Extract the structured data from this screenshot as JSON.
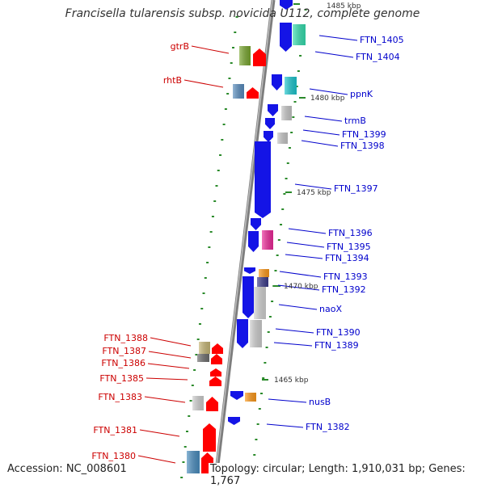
{
  "title": "Francisella tularensis subsp. novicida U112, complete genome",
  "footer": {
    "accession": "Accession: NC_008601",
    "topology": "Topology: circular; Length: 1,910,031 bp; Genes: 1,767"
  },
  "colors": {
    "forward_label": "#0000cc",
    "reverse_label": "#cc0000",
    "forward_arrow": "#1414e6",
    "reverse_arrow": "#ff0000",
    "backbone": "#8c8c8c",
    "tick": "#1f8a1f"
  },
  "scale_labels": [
    "1485 kbp",
    "1480 kbp",
    "1475 kbp",
    "1470 kbp",
    "1465 kbp"
  ],
  "forward_genes": [
    "FTN_1405",
    "FTN_1404",
    "ppnK",
    "trmB",
    "FTN_1399",
    "FTN_1398",
    "FTN_1397",
    "FTN_1396",
    "FTN_1395",
    "FTN_1394",
    "FTN_1393",
    "FTN_1392",
    "naoX",
    "FTN_1390",
    "FTN_1389",
    "nusB",
    "FTN_1382"
  ],
  "reverse_genes": [
    "gtrB",
    "rhtB",
    "FTN_1388",
    "FTN_1387",
    "FTN_1386",
    "FTN_1385",
    "FTN_1383",
    "FTN_1381",
    "FTN_1380"
  ]
}
